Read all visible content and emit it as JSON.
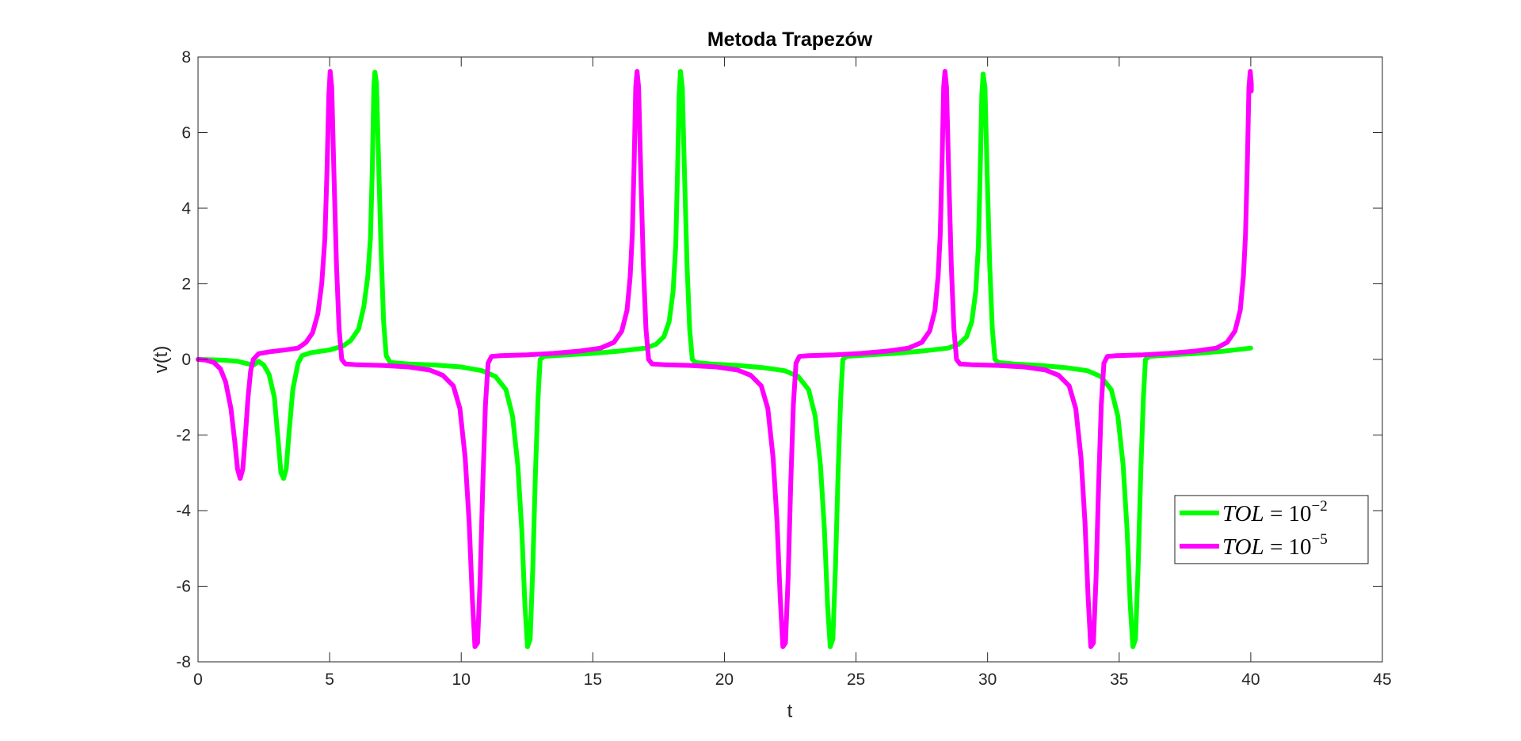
{
  "chart_data": {
    "type": "line",
    "title": "Metoda Trapezów",
    "xlabel": "t",
    "ylabel": "v(t)",
    "xlim": [
      0,
      45
    ],
    "ylim": [
      -8,
      8
    ],
    "xticks": [
      0,
      5,
      10,
      15,
      20,
      25,
      30,
      35,
      40,
      45
    ],
    "yticks": [
      -8,
      -6,
      -4,
      -2,
      0,
      2,
      4,
      6,
      8
    ],
    "grid": false,
    "legend_position": "lower-right",
    "period": 11.5,
    "series": [
      {
        "name": "TOL = 10^-2",
        "legend_var": "TOL",
        "legend_base": "10",
        "legend_exp": "−2",
        "color": "#00ff00",
        "points": [
          [
            0,
            0
          ],
          [
            0.6,
            -0.01
          ],
          [
            1.0,
            -0.02
          ],
          [
            1.5,
            -0.05
          ],
          [
            1.8,
            -0.1
          ],
          [
            2.1,
            -0.15
          ],
          [
            2.3,
            -0.05
          ],
          [
            2.5,
            -0.15
          ],
          [
            2.7,
            -0.4
          ],
          [
            2.9,
            -1.0
          ],
          [
            3.05,
            -2.2
          ],
          [
            3.15,
            -3.0
          ],
          [
            3.25,
            -3.15
          ],
          [
            3.35,
            -2.9
          ],
          [
            3.45,
            -2.0
          ],
          [
            3.6,
            -0.8
          ],
          [
            3.8,
            -0.1
          ],
          [
            3.95,
            0.1
          ],
          [
            4.3,
            0.18
          ],
          [
            5.0,
            0.25
          ],
          [
            5.5,
            0.35
          ],
          [
            5.8,
            0.5
          ],
          [
            6.1,
            0.8
          ],
          [
            6.3,
            1.4
          ],
          [
            6.45,
            2.2
          ],
          [
            6.55,
            3.2
          ],
          [
            6.62,
            5.0
          ],
          [
            6.68,
            7.2
          ],
          [
            6.72,
            7.6
          ],
          [
            6.78,
            7.3
          ],
          [
            6.85,
            5.5
          ],
          [
            6.95,
            3.0
          ],
          [
            7.05,
            1.0
          ],
          [
            7.15,
            0.1
          ],
          [
            7.3,
            -0.08
          ],
          [
            8.0,
            -0.12
          ],
          [
            9.0,
            -0.15
          ],
          [
            10.0,
            -0.2
          ],
          [
            10.8,
            -0.3
          ],
          [
            11.3,
            -0.45
          ],
          [
            11.7,
            -0.8
          ],
          [
            11.95,
            -1.5
          ],
          [
            12.15,
            -2.8
          ],
          [
            12.3,
            -4.5
          ],
          [
            12.42,
            -6.5
          ],
          [
            12.52,
            -7.6
          ],
          [
            12.62,
            -7.4
          ],
          [
            12.72,
            -5.5
          ],
          [
            12.82,
            -3.0
          ],
          [
            12.92,
            -1.0
          ],
          [
            13.0,
            0.0
          ],
          [
            13.15,
            0.08
          ],
          [
            14.0,
            0.12
          ],
          [
            15.0,
            0.16
          ],
          [
            16.0,
            0.22
          ],
          [
            17.0,
            0.3
          ],
          [
            17.4,
            0.4
          ],
          [
            17.7,
            0.6
          ],
          [
            17.9,
            1.0
          ],
          [
            18.05,
            1.8
          ],
          [
            18.15,
            3.0
          ],
          [
            18.22,
            5.0
          ],
          [
            18.28,
            7.0
          ],
          [
            18.33,
            7.62
          ],
          [
            18.4,
            7.2
          ],
          [
            18.48,
            5.0
          ],
          [
            18.58,
            2.5
          ],
          [
            18.68,
            0.8
          ],
          [
            18.78,
            0.0
          ],
          [
            18.9,
            -0.08
          ],
          [
            19.5,
            -0.12
          ],
          [
            20.5,
            -0.16
          ],
          [
            21.5,
            -0.22
          ],
          [
            22.3,
            -0.3
          ],
          [
            22.8,
            -0.45
          ],
          [
            23.2,
            -0.8
          ],
          [
            23.45,
            -1.5
          ],
          [
            23.65,
            -2.8
          ],
          [
            23.8,
            -4.5
          ],
          [
            23.92,
            -6.5
          ],
          [
            24.02,
            -7.6
          ],
          [
            24.12,
            -7.4
          ],
          [
            24.22,
            -5.5
          ],
          [
            24.32,
            -3.0
          ],
          [
            24.42,
            -1.0
          ],
          [
            24.5,
            0.0
          ],
          [
            24.65,
            0.08
          ],
          [
            25.5,
            0.12
          ],
          [
            26.5,
            0.16
          ],
          [
            27.5,
            0.22
          ],
          [
            28.5,
            0.3
          ],
          [
            28.9,
            0.4
          ],
          [
            29.2,
            0.6
          ],
          [
            29.4,
            1.0
          ],
          [
            29.55,
            1.8
          ],
          [
            29.65,
            3.0
          ],
          [
            29.72,
            5.0
          ],
          [
            29.78,
            7.0
          ],
          [
            29.83,
            7.55
          ],
          [
            29.9,
            7.2
          ],
          [
            29.98,
            5.0
          ],
          [
            30.08,
            2.5
          ],
          [
            30.18,
            0.8
          ],
          [
            30.28,
            0.0
          ],
          [
            30.4,
            -0.08
          ],
          [
            31.0,
            -0.12
          ],
          [
            32.0,
            -0.16
          ],
          [
            33.0,
            -0.22
          ],
          [
            33.8,
            -0.3
          ],
          [
            34.3,
            -0.45
          ],
          [
            34.7,
            -0.8
          ],
          [
            34.95,
            -1.5
          ],
          [
            35.15,
            -2.8
          ],
          [
            35.3,
            -4.5
          ],
          [
            35.42,
            -6.5
          ],
          [
            35.52,
            -7.6
          ],
          [
            35.62,
            -7.4
          ],
          [
            35.72,
            -5.5
          ],
          [
            35.82,
            -3.0
          ],
          [
            35.92,
            -1.0
          ],
          [
            36.0,
            0.0
          ],
          [
            36.15,
            0.08
          ],
          [
            37.0,
            0.12
          ],
          [
            38.0,
            0.16
          ],
          [
            39.0,
            0.22
          ],
          [
            40.0,
            0.3
          ]
        ]
      },
      {
        "name": "TOL = 10^-5",
        "legend_var": "TOL",
        "legend_base": "10",
        "legend_exp": "−5",
        "color": "#ff00ff",
        "points": [
          [
            0,
            0
          ],
          [
            0.3,
            -0.02
          ],
          [
            0.6,
            -0.08
          ],
          [
            0.85,
            -0.25
          ],
          [
            1.05,
            -0.6
          ],
          [
            1.25,
            -1.3
          ],
          [
            1.4,
            -2.2
          ],
          [
            1.5,
            -2.9
          ],
          [
            1.6,
            -3.15
          ],
          [
            1.7,
            -2.9
          ],
          [
            1.8,
            -2.0
          ],
          [
            1.9,
            -1.0
          ],
          [
            2.0,
            -0.3
          ],
          [
            2.1,
            0.0
          ],
          [
            2.3,
            0.15
          ],
          [
            2.7,
            0.2
          ],
          [
            3.3,
            0.25
          ],
          [
            3.8,
            0.3
          ],
          [
            4.1,
            0.45
          ],
          [
            4.35,
            0.7
          ],
          [
            4.55,
            1.2
          ],
          [
            4.7,
            2.0
          ],
          [
            4.82,
            3.2
          ],
          [
            4.9,
            5.0
          ],
          [
            4.97,
            7.0
          ],
          [
            5.02,
            7.62
          ],
          [
            5.08,
            7.2
          ],
          [
            5.16,
            5.0
          ],
          [
            5.26,
            2.5
          ],
          [
            5.36,
            0.8
          ],
          [
            5.46,
            0.0
          ],
          [
            5.6,
            -0.12
          ],
          [
            6.0,
            -0.14
          ],
          [
            7.0,
            -0.16
          ],
          [
            8.0,
            -0.2
          ],
          [
            8.8,
            -0.28
          ],
          [
            9.3,
            -0.42
          ],
          [
            9.7,
            -0.7
          ],
          [
            9.95,
            -1.3
          ],
          [
            10.15,
            -2.6
          ],
          [
            10.3,
            -4.3
          ],
          [
            10.42,
            -6.3
          ],
          [
            10.52,
            -7.6
          ],
          [
            10.62,
            -7.5
          ],
          [
            10.72,
            -5.8
          ],
          [
            10.82,
            -3.3
          ],
          [
            10.92,
            -1.2
          ],
          [
            11.02,
            -0.1
          ],
          [
            11.15,
            0.08
          ],
          [
            11.5,
            0.1
          ],
          [
            12.5,
            0.12
          ],
          [
            13.5,
            0.16
          ],
          [
            14.5,
            0.22
          ],
          [
            15.3,
            0.3
          ],
          [
            15.8,
            0.45
          ],
          [
            16.1,
            0.75
          ],
          [
            16.3,
            1.3
          ],
          [
            16.42,
            2.2
          ],
          [
            16.5,
            3.3
          ],
          [
            16.57,
            5.2
          ],
          [
            16.63,
            7.2
          ],
          [
            16.68,
            7.62
          ],
          [
            16.74,
            7.2
          ],
          [
            16.82,
            5.0
          ],
          [
            16.92,
            2.5
          ],
          [
            17.02,
            0.8
          ],
          [
            17.12,
            0.0
          ],
          [
            17.25,
            -0.12
          ],
          [
            17.7,
            -0.14
          ],
          [
            18.7,
            -0.16
          ],
          [
            19.7,
            -0.2
          ],
          [
            20.5,
            -0.28
          ],
          [
            21.0,
            -0.42
          ],
          [
            21.4,
            -0.7
          ],
          [
            21.65,
            -1.3
          ],
          [
            21.85,
            -2.6
          ],
          [
            22.0,
            -4.3
          ],
          [
            22.12,
            -6.3
          ],
          [
            22.22,
            -7.6
          ],
          [
            22.32,
            -7.5
          ],
          [
            22.42,
            -5.8
          ],
          [
            22.52,
            -3.3
          ],
          [
            22.62,
            -1.2
          ],
          [
            22.72,
            -0.1
          ],
          [
            22.85,
            0.08
          ],
          [
            23.2,
            0.1
          ],
          [
            24.2,
            0.12
          ],
          [
            25.2,
            0.16
          ],
          [
            26.2,
            0.22
          ],
          [
            27.0,
            0.3
          ],
          [
            27.5,
            0.45
          ],
          [
            27.8,
            0.75
          ],
          [
            28.0,
            1.3
          ],
          [
            28.12,
            2.2
          ],
          [
            28.2,
            3.3
          ],
          [
            28.27,
            5.2
          ],
          [
            28.33,
            7.2
          ],
          [
            28.38,
            7.62
          ],
          [
            28.44,
            7.2
          ],
          [
            28.52,
            5.0
          ],
          [
            28.62,
            2.5
          ],
          [
            28.72,
            0.8
          ],
          [
            28.82,
            0.0
          ],
          [
            28.95,
            -0.12
          ],
          [
            29.4,
            -0.14
          ],
          [
            30.4,
            -0.16
          ],
          [
            31.4,
            -0.2
          ],
          [
            32.2,
            -0.28
          ],
          [
            32.7,
            -0.42
          ],
          [
            33.1,
            -0.7
          ],
          [
            33.35,
            -1.3
          ],
          [
            33.55,
            -2.6
          ],
          [
            33.7,
            -4.3
          ],
          [
            33.82,
            -6.3
          ],
          [
            33.92,
            -7.6
          ],
          [
            34.02,
            -7.5
          ],
          [
            34.12,
            -5.8
          ],
          [
            34.22,
            -3.3
          ],
          [
            34.32,
            -1.2
          ],
          [
            34.42,
            -0.1
          ],
          [
            34.55,
            0.08
          ],
          [
            34.9,
            0.1
          ],
          [
            35.9,
            0.12
          ],
          [
            36.9,
            0.16
          ],
          [
            37.9,
            0.22
          ],
          [
            38.7,
            0.3
          ],
          [
            39.1,
            0.45
          ],
          [
            39.4,
            0.75
          ],
          [
            39.6,
            1.3
          ],
          [
            39.72,
            2.2
          ],
          [
            39.8,
            3.3
          ],
          [
            39.87,
            5.2
          ],
          [
            39.93,
            7.2
          ],
          [
            39.98,
            7.62
          ],
          [
            40.02,
            7.3
          ],
          [
            40.02,
            7.1
          ]
        ]
      }
    ]
  }
}
